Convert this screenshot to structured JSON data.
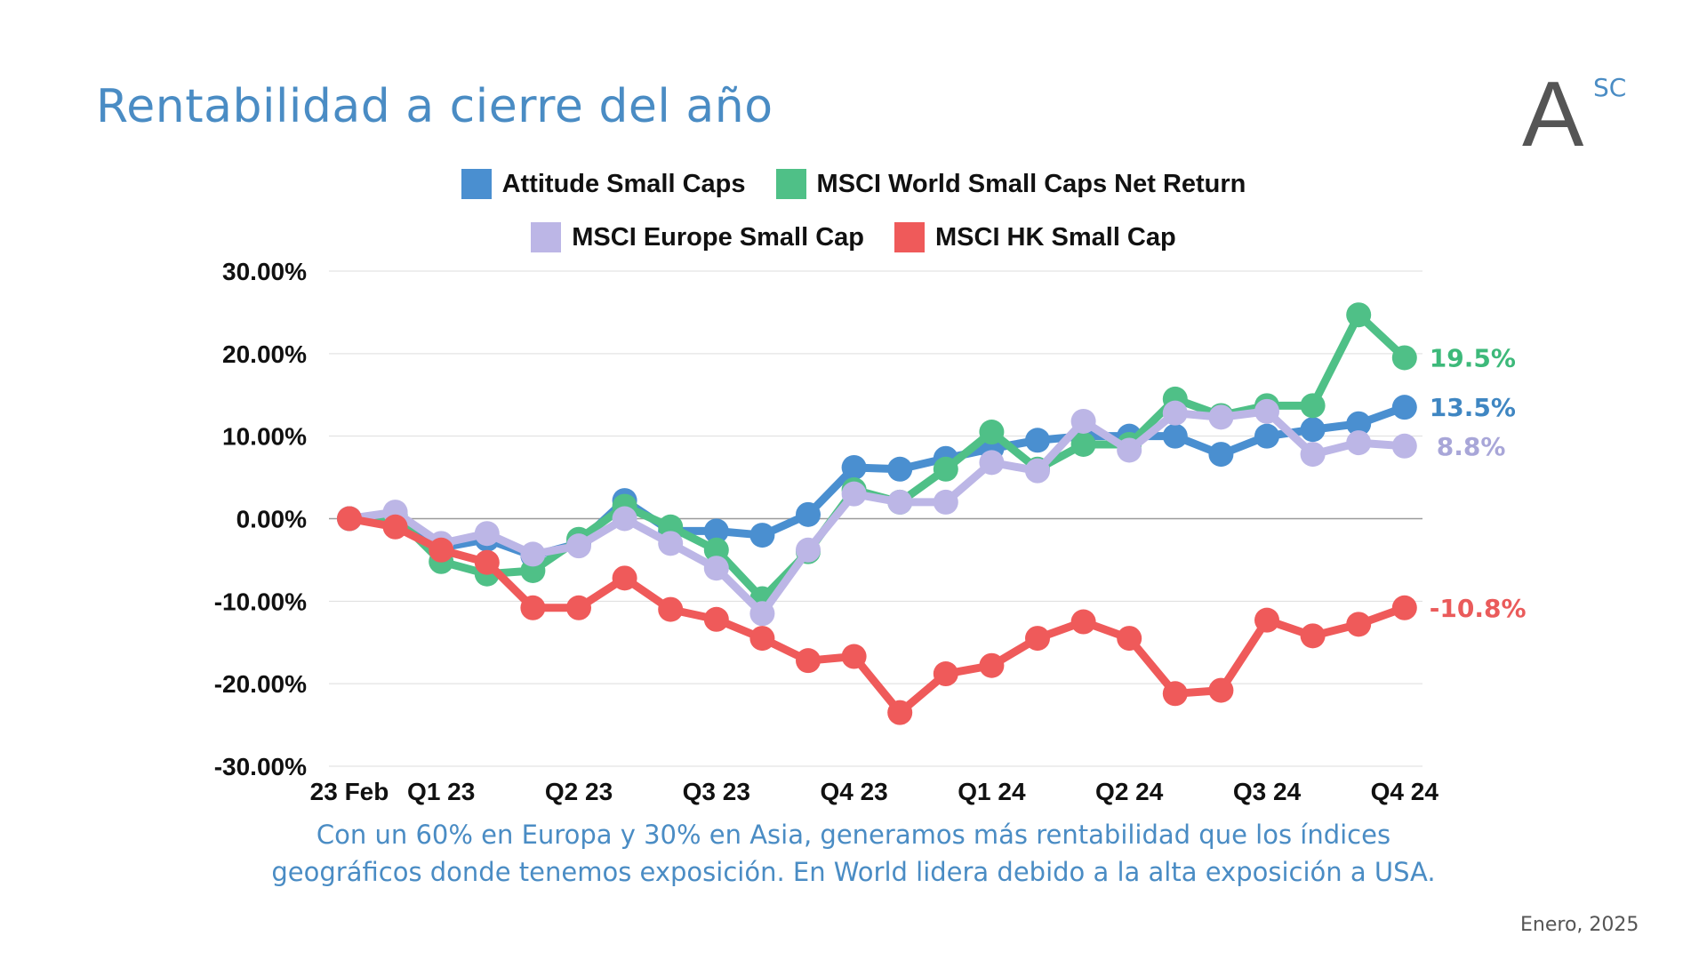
{
  "slide": {
    "title": "Rentabilidad a cierre del año",
    "caption_line1": "Con un 60% en Europa y 30% en Asia, generamos más rentabilidad que los índices",
    "caption_line2": "geográficos donde tenemos exposición. En World lidera debido a la alta exposición a USA.",
    "footer": "Enero, 2025",
    "logo": {
      "letter": "A",
      "superscript": "SC"
    }
  },
  "chart_data": {
    "type": "line",
    "title": "",
    "xlabel": "",
    "ylabel": "",
    "ylim": [
      -30,
      30
    ],
    "grid": true,
    "legend_position": "top-center",
    "yticks": [
      "30.00%",
      "20.00%",
      "10.00%",
      "0.00%",
      "-10.00%",
      "-20.00%",
      "-30.00%"
    ],
    "xtick_labels": [
      "23 Feb",
      "Q1 23",
      "Q2 23",
      "Q3 23",
      "Q4 23",
      "Q1 24",
      "Q2 24",
      "Q3 24",
      "Q4 24"
    ],
    "xtick_positions": [
      0,
      2,
      5,
      8,
      11,
      14,
      17,
      20,
      23
    ],
    "series": [
      {
        "name": "Attitude Small Caps",
        "color": "#4a8fd0",
        "end_label": "13.5%",
        "end_label_color": "#3f86c2",
        "values": [
          0,
          0.5,
          -3.5,
          -2.5,
          -4.5,
          -3,
          2.2,
          -1.5,
          -1.5,
          -2,
          0.5,
          6.2,
          6,
          7.3,
          8.5,
          9.5,
          10,
          10,
          10,
          7.8,
          10,
          10.8,
          11.5,
          13.5
        ]
      },
      {
        "name": "MSCI World Small Caps Net Return",
        "color": "#4fc087",
        "end_label": "19.5%",
        "end_label_color": "#3db97a",
        "values": [
          0,
          0.3,
          -5.2,
          -6.7,
          -6.3,
          -2.5,
          1.5,
          -1,
          -3.8,
          -9.7,
          -4,
          3.5,
          2,
          6,
          10.5,
          6,
          9,
          9,
          14.5,
          12.5,
          13.7,
          13.7,
          24.7,
          19.5
        ]
      },
      {
        "name": "MSCI Europe Small Cap",
        "color": "#bcb6e6",
        "end_label": "8.8%",
        "end_label_color": "#a8a6d8",
        "values": [
          0,
          0.8,
          -3,
          -1.8,
          -4.3,
          -3.3,
          0,
          -3,
          -6,
          -11.5,
          -3.8,
          3,
          2,
          2,
          6.8,
          5.8,
          11.8,
          8.3,
          12.8,
          12.3,
          13,
          7.8,
          9.2,
          8.8
        ]
      },
      {
        "name": "MSCI HK Small Cap",
        "color": "#ef5a5a",
        "end_label": "-10.8%",
        "end_label_color": "#ea5b5b",
        "values": [
          0,
          -1,
          -3.8,
          -5.3,
          -10.8,
          -10.8,
          -7.2,
          -11,
          -12.2,
          -14.5,
          -17.2,
          -16.7,
          -23.5,
          -18.8,
          -17.8,
          -14.5,
          -12.5,
          -14.5,
          -21.2,
          -20.8,
          -12.3,
          -14.2,
          -12.8,
          -10.8
        ]
      }
    ]
  }
}
